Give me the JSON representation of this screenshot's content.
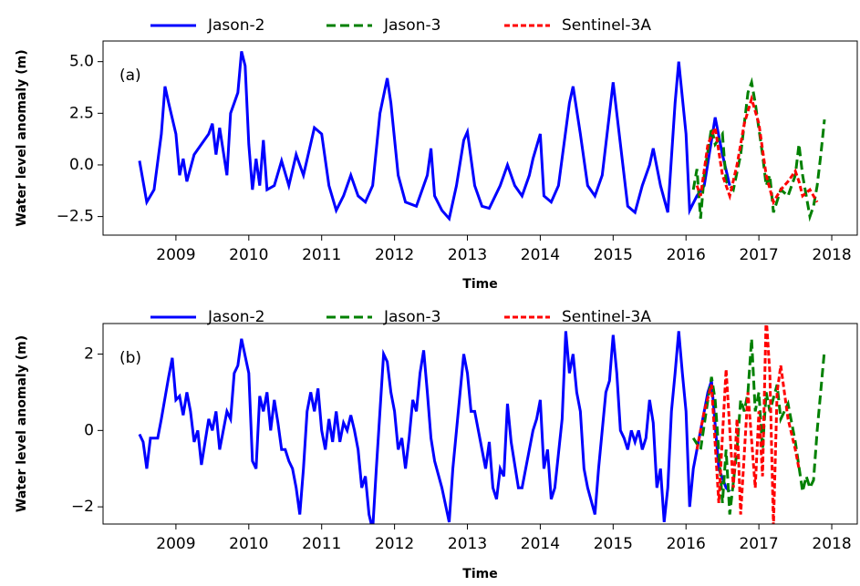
{
  "chart_data": [
    {
      "type": "line",
      "panel_label": "(a)",
      "xlabel": "Time",
      "ylabel": "Water level anomaly (m)",
      "xlim": [
        2008.0,
        2018.35
      ],
      "xticks": [
        2009,
        2010,
        2011,
        2012,
        2013,
        2014,
        2015,
        2016,
        2017,
        2018
      ],
      "ylim": [
        -3.4,
        6.0
      ],
      "yticks": [
        {
          "value": -2.5,
          "label": "−2.5"
        },
        {
          "value": 0,
          "label": "0.0"
        },
        {
          "value": 2.5,
          "label": "2.5"
        },
        {
          "value": 5,
          "label": "5.0"
        }
      ],
      "legend": "top",
      "series": [
        {
          "name": "Jason-2",
          "color": "#0000ff",
          "dash": "solid",
          "x": [
            2008.5,
            2008.6,
            2008.7,
            2008.8,
            2008.85,
            2008.9,
            2009.0,
            2009.05,
            2009.1,
            2009.15,
            2009.25,
            2009.35,
            2009.45,
            2009.5,
            2009.55,
            2009.6,
            2009.7,
            2009.75,
            2009.8,
            2009.85,
            2009.9,
            2009.95,
            2010.0,
            2010.05,
            2010.1,
            2010.15,
            2010.2,
            2010.25,
            2010.35,
            2010.45,
            2010.55,
            2010.65,
            2010.75,
            2010.9,
            2011.0,
            2011.1,
            2011.2,
            2011.3,
            2011.4,
            2011.5,
            2011.6,
            2011.7,
            2011.8,
            2011.9,
            2011.95,
            2012.05,
            2012.15,
            2012.3,
            2012.4,
            2012.45,
            2012.5,
            2012.55,
            2012.65,
            2012.75,
            2012.85,
            2012.95,
            2013.0,
            2013.1,
            2013.2,
            2013.3,
            2013.45,
            2013.55,
            2013.65,
            2013.75,
            2013.85,
            2013.9,
            2014.0,
            2014.05,
            2014.15,
            2014.25,
            2014.4,
            2014.45,
            2014.55,
            2014.65,
            2014.75,
            2014.85,
            2014.95,
            2015.0,
            2015.1,
            2015.2,
            2015.3,
            2015.4,
            2015.5,
            2015.55,
            2015.65,
            2015.75,
            2015.85,
            2015.9,
            2016.0,
            2016.05,
            2016.15,
            2016.25,
            2016.4,
            2016.5,
            2016.6
          ],
          "values": [
            0.2,
            -1.8,
            -1.2,
            1.5,
            3.8,
            3.0,
            1.5,
            -0.5,
            0.3,
            -0.8,
            0.5,
            1.0,
            1.5,
            2.0,
            0.5,
            1.8,
            -0.5,
            2.5,
            3.0,
            3.5,
            5.5,
            4.8,
            1.0,
            -1.2,
            0.3,
            -1.0,
            1.2,
            -1.2,
            -1.0,
            0.2,
            -1.0,
            0.5,
            -0.5,
            1.8,
            1.5,
            -1.0,
            -2.2,
            -1.5,
            -0.5,
            -1.5,
            -1.8,
            -1.0,
            2.5,
            4.2,
            3.0,
            -0.5,
            -1.8,
            -2.0,
            -1.0,
            -0.5,
            0.8,
            -1.5,
            -2.2,
            -2.6,
            -1.0,
            1.2,
            1.6,
            -1.0,
            -2.0,
            -2.1,
            -1.0,
            0.0,
            -1.0,
            -1.5,
            -0.5,
            0.3,
            1.5,
            -1.5,
            -1.8,
            -1.0,
            3.0,
            3.8,
            1.5,
            -1.0,
            -1.5,
            -0.5,
            2.5,
            4.0,
            1.0,
            -2.0,
            -2.3,
            -1.0,
            0.0,
            0.8,
            -1.0,
            -2.3,
            3.0,
            5.0,
            1.5,
            -2.2,
            -1.5,
            -1.0,
            2.3,
            0.5,
            -1.0
          ]
        },
        {
          "name": "Jason-3",
          "color": "#008000",
          "dash": "long",
          "x": [
            2016.1,
            2016.15,
            2016.2,
            2016.25,
            2016.35,
            2016.4,
            2016.5,
            2016.55,
            2016.65,
            2016.75,
            2016.85,
            2016.9,
            2016.95,
            2017.05,
            2017.1,
            2017.15,
            2017.2,
            2017.3,
            2017.4,
            2017.5,
            2017.55,
            2017.6,
            2017.7,
            2017.75,
            2017.8,
            2017.85,
            2017.9
          ],
          "values": [
            -1.2,
            -0.2,
            -2.6,
            -0.5,
            1.8,
            1.0,
            1.5,
            -0.8,
            -1.2,
            0.5,
            3.5,
            4.0,
            3.0,
            0.5,
            -1.0,
            -0.5,
            -2.3,
            -1.2,
            -1.5,
            -0.5,
            1.0,
            -0.5,
            -2.5,
            -2.0,
            -1.0,
            0.5,
            2.2
          ]
        },
        {
          "name": "Sentinel-3A",
          "color": "#ff0000",
          "dash": "short",
          "x": [
            2016.15,
            2016.2,
            2016.3,
            2016.4,
            2016.5,
            2016.6,
            2016.7,
            2016.8,
            2016.9,
            2017.0,
            2017.1,
            2017.2,
            2017.3,
            2017.4,
            2017.5,
            2017.55,
            2017.6,
            2017.7,
            2017.8
          ],
          "values": [
            -1.0,
            -1.5,
            1.0,
            1.8,
            -0.5,
            -1.5,
            0.0,
            2.0,
            3.2,
            2.0,
            -0.5,
            -1.8,
            -1.2,
            -0.8,
            -0.3,
            -0.8,
            -1.5,
            -1.2,
            -1.8
          ]
        }
      ]
    },
    {
      "type": "line",
      "panel_label": "(b)",
      "xlabel": "Time",
      "ylabel": "Water level anomaly (m)",
      "xlim": [
        2008.0,
        2018.35
      ],
      "xticks": [
        2009,
        2010,
        2011,
        2012,
        2013,
        2014,
        2015,
        2016,
        2017,
        2018
      ],
      "ylim": [
        -2.45,
        2.8
      ],
      "yticks": [
        {
          "value": -2,
          "label": "−2"
        },
        0,
        2
      ],
      "legend": "top",
      "series": [
        {
          "name": "Jason-2",
          "color": "#0000ff",
          "dash": "solid",
          "x": [
            2008.5,
            2008.55,
            2008.6,
            2008.65,
            2008.75,
            2008.8,
            2008.9,
            2008.95,
            2009.0,
            2009.05,
            2009.1,
            2009.15,
            2009.2,
            2009.25,
            2009.3,
            2009.35,
            2009.45,
            2009.5,
            2009.55,
            2009.6,
            2009.7,
            2009.75,
            2009.8,
            2009.85,
            2009.9,
            2010.0,
            2010.05,
            2010.1,
            2010.15,
            2010.2,
            2010.25,
            2010.3,
            2010.35,
            2010.4,
            2010.45,
            2010.5,
            2010.55,
            2010.6,
            2010.65,
            2010.7,
            2010.75,
            2010.8,
            2010.85,
            2010.9,
            2010.95,
            2011.0,
            2011.05,
            2011.1,
            2011.15,
            2011.2,
            2011.25,
            2011.3,
            2011.35,
            2011.4,
            2011.45,
            2011.5,
            2011.55,
            2011.6,
            2011.65,
            2011.7,
            2011.75,
            2011.85,
            2011.9,
            2011.95,
            2012.0,
            2012.05,
            2012.1,
            2012.15,
            2012.2,
            2012.25,
            2012.3,
            2012.35,
            2012.4,
            2012.45,
            2012.5,
            2012.55,
            2012.65,
            2012.75,
            2012.8,
            2012.9,
            2012.95,
            2013.0,
            2013.05,
            2013.1,
            2013.15,
            2013.2,
            2013.25,
            2013.3,
            2013.35,
            2013.4,
            2013.45,
            2013.5,
            2013.55,
            2013.6,
            2013.65,
            2013.7,
            2013.75,
            2013.85,
            2013.9,
            2013.95,
            2014.0,
            2014.05,
            2014.1,
            2014.15,
            2014.2,
            2014.3,
            2014.35,
            2014.4,
            2014.45,
            2014.5,
            2014.55,
            2014.6,
            2014.65,
            2014.75,
            2014.8,
            2014.9,
            2014.95,
            2015.0,
            2015.05,
            2015.1,
            2015.15,
            2015.2,
            2015.25,
            2015.3,
            2015.35,
            2015.4,
            2015.45,
            2015.5,
            2015.55,
            2015.6,
            2015.65,
            2015.7,
            2015.75,
            2015.8,
            2015.85,
            2015.9,
            2015.95,
            2016.0,
            2016.05,
            2016.1,
            2016.2,
            2016.3,
            2016.35,
            2016.45,
            2016.55,
            2016.6
          ],
          "values": [
            -0.1,
            -0.3,
            -1.0,
            -0.2,
            -0.2,
            0.3,
            1.4,
            1.9,
            0.8,
            0.9,
            0.4,
            1.0,
            0.5,
            -0.3,
            0.0,
            -0.9,
            0.3,
            0.0,
            0.5,
            -0.5,
            0.5,
            0.3,
            1.5,
            1.7,
            2.4,
            1.5,
            -0.8,
            -1.0,
            0.9,
            0.5,
            1.0,
            0.0,
            0.8,
            0.2,
            -0.5,
            -0.5,
            -0.8,
            -1.0,
            -1.5,
            -2.2,
            -1.0,
            0.5,
            1.0,
            0.5,
            1.1,
            0.0,
            -0.5,
            0.3,
            -0.3,
            0.5,
            -0.3,
            0.2,
            0.0,
            0.4,
            0.0,
            -0.5,
            -1.5,
            -1.2,
            -2.2,
            -2.6,
            -1.0,
            2.0,
            1.8,
            1.0,
            0.5,
            -0.5,
            -0.2,
            -1.0,
            -0.2,
            0.8,
            0.5,
            1.5,
            2.1,
            1.0,
            -0.2,
            -0.8,
            -1.5,
            -2.4,
            -1.0,
            1.0,
            2.0,
            1.5,
            0.5,
            0.5,
            0.0,
            -0.5,
            -1.0,
            -0.3,
            -1.5,
            -1.8,
            -1.0,
            -1.2,
            0.7,
            -0.3,
            -0.9,
            -1.5,
            -1.5,
            -0.5,
            0.0,
            0.3,
            0.8,
            -1.0,
            -0.5,
            -1.8,
            -1.5,
            0.3,
            2.6,
            1.5,
            2.0,
            1.0,
            0.5,
            -1.0,
            -1.5,
            -2.2,
            -1.0,
            1.0,
            1.3,
            2.5,
            1.5,
            0.0,
            -0.2,
            -0.5,
            0.0,
            -0.3,
            0.0,
            -0.5,
            -0.2,
            0.8,
            0.2,
            -1.5,
            -1.0,
            -2.4,
            -1.5,
            0.5,
            1.5,
            2.6,
            1.5,
            0.5,
            -2.0,
            -1.0,
            0.0,
            1.0,
            1.3,
            -1.0,
            -1.5,
            -1.6
          ]
        },
        {
          "name": "Jason-3",
          "color": "#008000",
          "dash": "long",
          "x": [
            2016.1,
            2016.2,
            2016.3,
            2016.35,
            2016.4,
            2016.5,
            2016.55,
            2016.6,
            2016.7,
            2016.75,
            2016.8,
            2016.85,
            2016.9,
            2016.95,
            2017.0,
            2017.05,
            2017.1,
            2017.15,
            2017.25,
            2017.3,
            2017.4,
            2017.5,
            2017.6,
            2017.65,
            2017.7,
            2017.75,
            2017.8,
            2017.9
          ],
          "values": [
            -0.2,
            -0.5,
            0.8,
            1.4,
            0.8,
            -1.9,
            -0.5,
            -2.2,
            -0.5,
            0.8,
            0.5,
            1.0,
            2.4,
            0.5,
            1.0,
            -0.5,
            1.0,
            0.5,
            1.2,
            0.3,
            0.7,
            -0.3,
            -1.6,
            -1.2,
            -1.5,
            -1.3,
            0.0,
            2.1
          ]
        },
        {
          "name": "Sentinel-3A",
          "color": "#ff0000",
          "dash": "short",
          "x": [
            2016.15,
            2016.25,
            2016.35,
            2016.45,
            2016.55,
            2016.65,
            2016.7,
            2016.75,
            2016.85,
            2016.95,
            2017.0,
            2017.05,
            2017.1,
            2017.15,
            2017.2,
            2017.25,
            2017.3,
            2017.4,
            2017.5,
            2017.55
          ],
          "values": [
            -0.5,
            0.5,
            1.2,
            -1.9,
            1.6,
            -1.5,
            0.3,
            -2.2,
            1.0,
            -1.5,
            0.5,
            -1.2,
            3.0,
            1.5,
            -2.5,
            1.0,
            1.7,
            0.3,
            -0.5,
            -1.0
          ]
        }
      ]
    }
  ]
}
